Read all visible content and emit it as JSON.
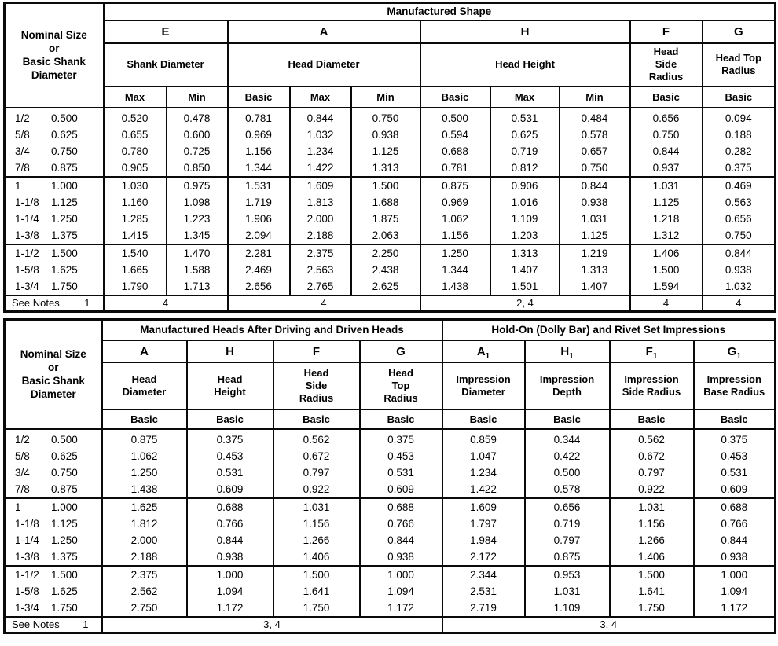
{
  "colors": {
    "border": "#0a0a0a",
    "text": "#000000",
    "background": "#ffffff"
  },
  "table1": {
    "corner": "Nominal Size\nor\nBasic Shank\nDiameter",
    "title": "Manufactured Shape",
    "letters": [
      {
        "main": "E"
      },
      {
        "main": "A"
      },
      {
        "main": "H"
      },
      {
        "main": "F"
      },
      {
        "main": "G"
      }
    ],
    "measures": [
      "Shank Diameter",
      "Head Diameter",
      "Head Height",
      "Head\nSide\nRadius",
      "Head Top\nRadius"
    ],
    "subcols": [
      "Max",
      "Min",
      "Basic",
      "Max",
      "Min",
      "Basic",
      "Max",
      "Min",
      "Basic",
      "Basic"
    ],
    "groups": [
      [
        {
          "size": "1/2",
          "decimal": "0.500",
          "values": [
            "0.520",
            "0.478",
            "0.781",
            "0.844",
            "0.750",
            "0.500",
            "0.531",
            "0.484",
            "0.656",
            "0.094"
          ]
        },
        {
          "size": "5/8",
          "decimal": "0.625",
          "values": [
            "0.655",
            "0.600",
            "0.969",
            "1.032",
            "0.938",
            "0.594",
            "0.625",
            "0.578",
            "0.750",
            "0.188"
          ]
        },
        {
          "size": "3/4",
          "decimal": "0.750",
          "values": [
            "0.780",
            "0.725",
            "1.156",
            "1.234",
            "1.125",
            "0.688",
            "0.719",
            "0.657",
            "0.844",
            "0.282"
          ]
        },
        {
          "size": "7/8",
          "decimal": "0.875",
          "values": [
            "0.905",
            "0.850",
            "1.344",
            "1.422",
            "1.313",
            "0.781",
            "0.812",
            "0.750",
            "0.937",
            "0.375"
          ]
        }
      ],
      [
        {
          "size": "1",
          "decimal": "1.000",
          "values": [
            "1.030",
            "0.975",
            "1.531",
            "1.609",
            "1.500",
            "0.875",
            "0.906",
            "0.844",
            "1.031",
            "0.469"
          ]
        },
        {
          "size": "1-1/8",
          "decimal": "1.125",
          "values": [
            "1.160",
            "1.098",
            "1.719",
            "1.813",
            "1.688",
            "0.969",
            "1.016",
            "0.938",
            "1.125",
            "0.563"
          ]
        },
        {
          "size": "1-1/4",
          "decimal": "1.250",
          "values": [
            "1.285",
            "1.223",
            "1.906",
            "2.000",
            "1.875",
            "1.062",
            "1.109",
            "1.031",
            "1.218",
            "0.656"
          ]
        },
        {
          "size": "1-3/8",
          "decimal": "1.375",
          "values": [
            "1.415",
            "1.345",
            "2.094",
            "2.188",
            "2.063",
            "1.156",
            "1.203",
            "1.125",
            "1.312",
            "0.750"
          ]
        }
      ],
      [
        {
          "size": "1-1/2",
          "decimal": "1.500",
          "values": [
            "1.540",
            "1.470",
            "2.281",
            "2.375",
            "2.250",
            "1.250",
            "1.313",
            "1.219",
            "1.406",
            "0.844"
          ]
        },
        {
          "size": "1-5/8",
          "decimal": "1.625",
          "values": [
            "1.665",
            "1.588",
            "2.469",
            "2.563",
            "2.438",
            "1.344",
            "1.407",
            "1.313",
            "1.500",
            "0.938"
          ]
        },
        {
          "size": "1-3/4",
          "decimal": "1.750",
          "values": [
            "1.790",
            "1.713",
            "2.656",
            "2.765",
            "2.625",
            "1.438",
            "1.501",
            "1.407",
            "1.594",
            "1.032"
          ]
        }
      ]
    ],
    "see_notes": {
      "label": "See Notes",
      "number": "1",
      "cells": [
        "4",
        "4",
        "2, 4",
        "4",
        "4"
      ]
    }
  },
  "table2": {
    "corner": "Nominal Size\nor\nBasic Shank\nDiameter",
    "title_left": "Manufactured Heads After Driving and Driven Heads",
    "title_right": "Hold-On (Dolly Bar) and Rivet Set Impressions",
    "letters": [
      {
        "main": "A"
      },
      {
        "main": "H"
      },
      {
        "main": "F"
      },
      {
        "main": "G"
      },
      {
        "main": "A",
        "sub": "1"
      },
      {
        "main": "H",
        "sub": "1"
      },
      {
        "main": "F",
        "sub": "1"
      },
      {
        "main": "G",
        "sub": "1"
      }
    ],
    "measures": [
      "Head\nDiameter",
      "Head\nHeight",
      "Head\nSide\nRadius",
      "Head\nTop\nRadius",
      "Impression\nDiameter",
      "Impression\nDepth",
      "Impression\nSide Radius",
      "Impression\nBase Radius"
    ],
    "subcols": [
      "Basic",
      "Basic",
      "Basic",
      "Basic",
      "Basic",
      "Basic",
      "Basic",
      "Basic"
    ],
    "groups": [
      [
        {
          "size": "1/2",
          "decimal": "0.500",
          "values": [
            "0.875",
            "0.375",
            "0.562",
            "0.375",
            "0.859",
            "0.344",
            "0.562",
            "0.375"
          ]
        },
        {
          "size": "5/8",
          "decimal": "0.625",
          "values": [
            "1.062",
            "0.453",
            "0.672",
            "0.453",
            "1.047",
            "0.422",
            "0.672",
            "0.453"
          ]
        },
        {
          "size": "3/4",
          "decimal": "0.750",
          "values": [
            "1.250",
            "0.531",
            "0.797",
            "0.531",
            "1.234",
            "0.500",
            "0.797",
            "0.531"
          ]
        },
        {
          "size": "7/8",
          "decimal": "0.875",
          "values": [
            "1.438",
            "0.609",
            "0.922",
            "0.609",
            "1.422",
            "0.578",
            "0.922",
            "0.609"
          ]
        }
      ],
      [
        {
          "size": "1",
          "decimal": "1.000",
          "values": [
            "1.625",
            "0.688",
            "1.031",
            "0.688",
            "1.609",
            "0.656",
            "1.031",
            "0.688"
          ]
        },
        {
          "size": "1-1/8",
          "decimal": "1.125",
          "values": [
            "1.812",
            "0.766",
            "1.156",
            "0.766",
            "1.797",
            "0.719",
            "1.156",
            "0.766"
          ]
        },
        {
          "size": "1-1/4",
          "decimal": "1.250",
          "values": [
            "2.000",
            "0.844",
            "1.266",
            "0.844",
            "1.984",
            "0.797",
            "1.266",
            "0.844"
          ]
        },
        {
          "size": "1-3/8",
          "decimal": "1.375",
          "values": [
            "2.188",
            "0.938",
            "1.406",
            "0.938",
            "2.172",
            "0.875",
            "1.406",
            "0.938"
          ]
        }
      ],
      [
        {
          "size": "1-1/2",
          "decimal": "1.500",
          "values": [
            "2.375",
            "1.000",
            "1.500",
            "1.000",
            "2.344",
            "0.953",
            "1.500",
            "1.000"
          ]
        },
        {
          "size": "1-5/8",
          "decimal": "1.625",
          "values": [
            "2.562",
            "1.094",
            "1.641",
            "1.094",
            "2.531",
            "1.031",
            "1.641",
            "1.094"
          ]
        },
        {
          "size": "1-3/4",
          "decimal": "1.750",
          "values": [
            "2.750",
            "1.172",
            "1.750",
            "1.172",
            "2.719",
            "1.109",
            "1.750",
            "1.172"
          ]
        }
      ]
    ],
    "see_notes": {
      "label": "See Notes",
      "number": "1",
      "cells": [
        "3, 4",
        "3, 4"
      ]
    }
  }
}
